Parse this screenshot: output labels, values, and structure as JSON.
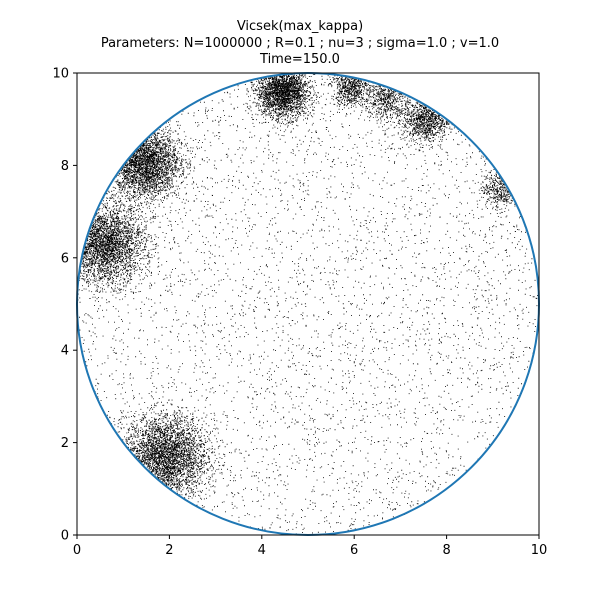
{
  "chart_data": {
    "type": "scatter",
    "title_lines": [
      "Vicsek(max_kappa)",
      "Parameters: N=1000000 ; R=0.1 ; nu=3 ; sigma=1.0 ; v=1.0",
      "Time=150.0"
    ],
    "xlabel": "",
    "ylabel": "",
    "xlim": [
      0,
      10
    ],
    "ylim": [
      0,
      10
    ],
    "x_ticks": [
      0,
      2,
      4,
      6,
      8,
      10
    ],
    "y_ticks": [
      0,
      2,
      4,
      6,
      8,
      10
    ],
    "x_tick_labels": [
      "0",
      "2",
      "4",
      "6",
      "8",
      "10"
    ],
    "y_tick_labels": [
      "0",
      "2",
      "4",
      "6",
      "8",
      "10"
    ],
    "grid": false,
    "boundary_circle": {
      "center": [
        5,
        5
      ],
      "radius": 5,
      "color": "#1f77b4"
    },
    "point_color": "#000000",
    "background_density": 4200,
    "clusters": [
      {
        "x": 4.45,
        "y": 9.6,
        "spread": 0.28,
        "count": 2600
      },
      {
        "x": 1.45,
        "y": 8.05,
        "spread": 0.38,
        "count": 3400
      },
      {
        "x": 0.6,
        "y": 6.3,
        "spread": 0.42,
        "count": 3400
      },
      {
        "x": 1.9,
        "y": 1.7,
        "spread": 0.45,
        "count": 3800
      },
      {
        "x": 5.9,
        "y": 9.7,
        "spread": 0.2,
        "count": 700
      },
      {
        "x": 6.7,
        "y": 9.45,
        "spread": 0.25,
        "count": 700
      },
      {
        "x": 7.55,
        "y": 9.0,
        "spread": 0.25,
        "count": 1100
      },
      {
        "x": 9.15,
        "y": 7.5,
        "spread": 0.2,
        "count": 500
      }
    ]
  }
}
